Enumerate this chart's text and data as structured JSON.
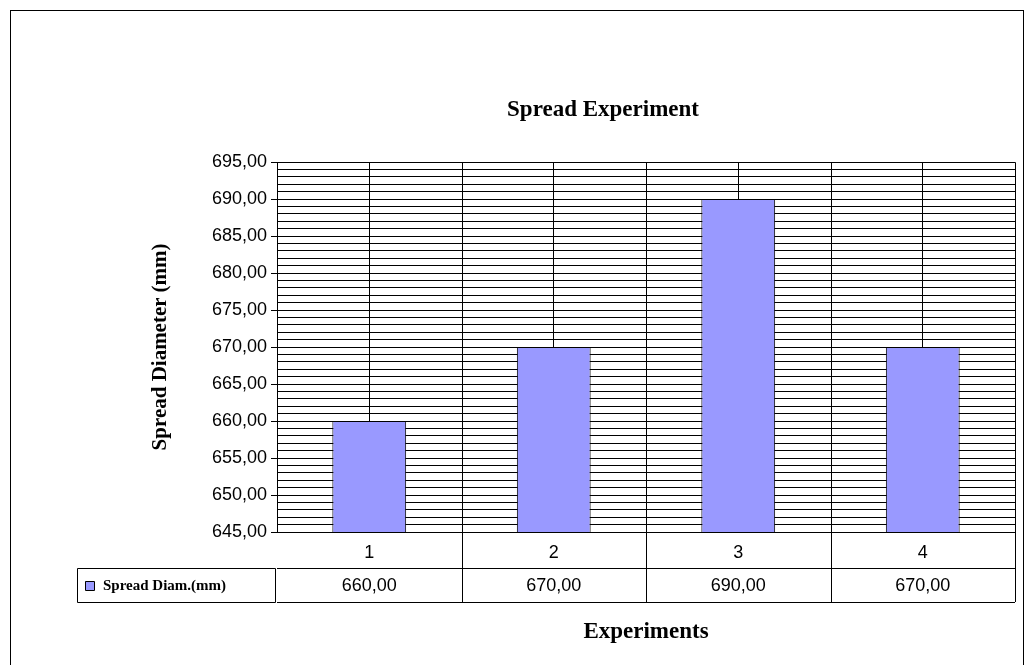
{
  "chart_data": {
    "type": "bar",
    "title": "Spread Experiment",
    "xlabel": "Experiments",
    "ylabel": "Spread Diameter (mm)",
    "categories": [
      "1",
      "2",
      "3",
      "4"
    ],
    "series": [
      {
        "name": "Spread Diam.(mm)",
        "color": "#9999ff",
        "values": [
          660,
          670,
          690,
          670
        ]
      }
    ],
    "ylim": [
      645,
      695
    ],
    "yticks": [
      {
        "value": 645,
        "label": "645,00"
      },
      {
        "value": 646,
        "label": null
      },
      {
        "value": 647,
        "label": null
      },
      {
        "value": 648,
        "label": null
      },
      {
        "value": 649,
        "label": null
      },
      {
        "value": 650,
        "label": "650,00"
      },
      {
        "value": 651,
        "label": null
      },
      {
        "value": 652,
        "label": null
      },
      {
        "value": 653,
        "label": null
      },
      {
        "value": 654,
        "label": null
      },
      {
        "value": 655,
        "label": "655,00"
      },
      {
        "value": 656,
        "label": null
      },
      {
        "value": 657,
        "label": null
      },
      {
        "value": 658,
        "label": null
      },
      {
        "value": 659,
        "label": null
      },
      {
        "value": 660,
        "label": "660,00"
      },
      {
        "value": 661,
        "label": null
      },
      {
        "value": 662,
        "label": null
      },
      {
        "value": 663,
        "label": null
      },
      {
        "value": 664,
        "label": null
      },
      {
        "value": 665,
        "label": "665,00"
      },
      {
        "value": 666,
        "label": null
      },
      {
        "value": 667,
        "label": null
      },
      {
        "value": 668,
        "label": null
      },
      {
        "value": 669,
        "label": null
      },
      {
        "value": 670,
        "label": "670,00"
      },
      {
        "value": 671,
        "label": null
      },
      {
        "value": 672,
        "label": null
      },
      {
        "value": 673,
        "label": null
      },
      {
        "value": 674,
        "label": null
      },
      {
        "value": 675,
        "label": "675,00"
      },
      {
        "value": 676,
        "label": null
      },
      {
        "value": 677,
        "label": null
      },
      {
        "value": 678,
        "label": null
      },
      {
        "value": 679,
        "label": null
      },
      {
        "value": 680,
        "label": "680,00"
      },
      {
        "value": 681,
        "label": null
      },
      {
        "value": 682,
        "label": null
      },
      {
        "value": 683,
        "label": null
      },
      {
        "value": 684,
        "label": null
      },
      {
        "value": 685,
        "label": "685,00"
      },
      {
        "value": 686,
        "label": null
      },
      {
        "value": 687,
        "label": null
      },
      {
        "value": 688,
        "label": null
      },
      {
        "value": 689,
        "label": null
      },
      {
        "value": 690,
        "label": "690,00"
      },
      {
        "value": 691,
        "label": null
      },
      {
        "value": 692,
        "label": null
      },
      {
        "value": 693,
        "label": null
      },
      {
        "value": 694,
        "label": null
      },
      {
        "value": 695,
        "label": "695,00"
      }
    ],
    "value_labels": [
      "660,00",
      "670,00",
      "690,00",
      "670,00"
    ],
    "grid": true,
    "legend": "bottom left"
  }
}
